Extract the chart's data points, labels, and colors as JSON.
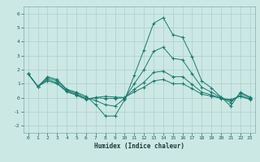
{
  "xlabel": "Humidex (Indice chaleur)",
  "xlim": [
    -0.5,
    23.5
  ],
  "ylim": [
    -2.5,
    6.5
  ],
  "yticks": [
    -2,
    -1,
    0,
    1,
    2,
    3,
    4,
    5,
    6
  ],
  "xticks": [
    0,
    1,
    2,
    3,
    4,
    5,
    6,
    7,
    8,
    9,
    10,
    11,
    12,
    13,
    14,
    15,
    16,
    17,
    18,
    19,
    20,
    21,
    22,
    23
  ],
  "line_color": "#1a7a6e",
  "bg_color": "#cce8e4",
  "grid_color": "#aacfcc",
  "series": [
    {
      "x": [
        0,
        1,
        2,
        3,
        4,
        5,
        6,
        7,
        8,
        9,
        10,
        11,
        12,
        13,
        14,
        15,
        16,
        17,
        18,
        19,
        20,
        21,
        22,
        23
      ],
      "y": [
        1.7,
        0.8,
        1.5,
        1.3,
        0.6,
        0.4,
        0.1,
        -0.5,
        -1.3,
        -1.3,
        -0.15,
        1.6,
        3.4,
        5.3,
        5.7,
        4.5,
        4.3,
        2.9,
        1.2,
        0.7,
        0.05,
        -0.6,
        0.4,
        0.05
      ]
    },
    {
      "x": [
        0,
        1,
        2,
        3,
        4,
        5,
        6,
        7,
        8,
        9,
        10,
        11,
        12,
        13,
        14,
        15,
        16,
        17,
        18,
        19,
        20,
        21,
        22,
        23
      ],
      "y": [
        1.7,
        0.8,
        1.4,
        1.2,
        0.55,
        0.3,
        0.0,
        -0.2,
        -0.5,
        -0.6,
        -0.05,
        1.0,
        2.0,
        3.3,
        3.6,
        2.8,
        2.7,
        1.7,
        0.75,
        0.4,
        0.02,
        -0.35,
        0.3,
        0.0
      ]
    },
    {
      "x": [
        0,
        1,
        2,
        3,
        4,
        5,
        6,
        7,
        8,
        9,
        10,
        11,
        12,
        13,
        14,
        15,
        16,
        17,
        18,
        19,
        20,
        21,
        22,
        23
      ],
      "y": [
        1.7,
        0.8,
        1.3,
        1.05,
        0.48,
        0.22,
        -0.08,
        0.0,
        -0.05,
        -0.05,
        0.0,
        0.6,
        1.1,
        1.8,
        1.9,
        1.5,
        1.5,
        0.95,
        0.4,
        0.2,
        -0.02,
        -0.22,
        0.15,
        -0.08
      ]
    },
    {
      "x": [
        0,
        1,
        2,
        3,
        4,
        5,
        6,
        7,
        8,
        9,
        10,
        11,
        12,
        13,
        14,
        15,
        16,
        17,
        18,
        19,
        20,
        21,
        22,
        23
      ],
      "y": [
        1.7,
        0.8,
        1.2,
        1.0,
        0.42,
        0.18,
        -0.12,
        0.02,
        0.1,
        0.05,
        0.02,
        0.42,
        0.75,
        1.2,
        1.3,
        1.0,
        1.0,
        0.65,
        0.25,
        0.12,
        -0.05,
        -0.12,
        0.1,
        -0.12
      ]
    }
  ]
}
